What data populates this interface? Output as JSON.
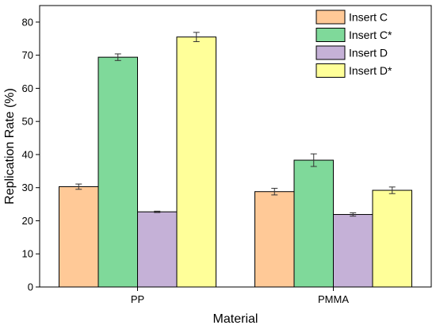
{
  "chart_data": {
    "type": "bar",
    "xlabel": "Material",
    "ylabel": "Replication Rate (%)",
    "ylim": [
      0,
      85
    ],
    "yticks": [
      0,
      10,
      20,
      30,
      40,
      50,
      60,
      70,
      80
    ],
    "categories": [
      "PP",
      "PMMA"
    ],
    "grid": false,
    "legend_position": "top-right",
    "series": [
      {
        "name": "Insert C",
        "color": "#FFC997",
        "values": [
          30.3,
          28.8
        ],
        "errors": [
          0.8,
          1.0
        ]
      },
      {
        "name": "Insert C*",
        "color": "#7FD99A",
        "values": [
          69.4,
          38.3
        ],
        "errors": [
          1.0,
          1.9
        ]
      },
      {
        "name": "Insert D",
        "color": "#C5B1D7",
        "values": [
          22.7,
          21.9
        ],
        "errors": [
          0.2,
          0.5
        ]
      },
      {
        "name": "Insert D*",
        "color": "#FFFF99",
        "values": [
          75.5,
          29.2
        ],
        "errors": [
          1.4,
          1.0
        ]
      }
    ]
  }
}
